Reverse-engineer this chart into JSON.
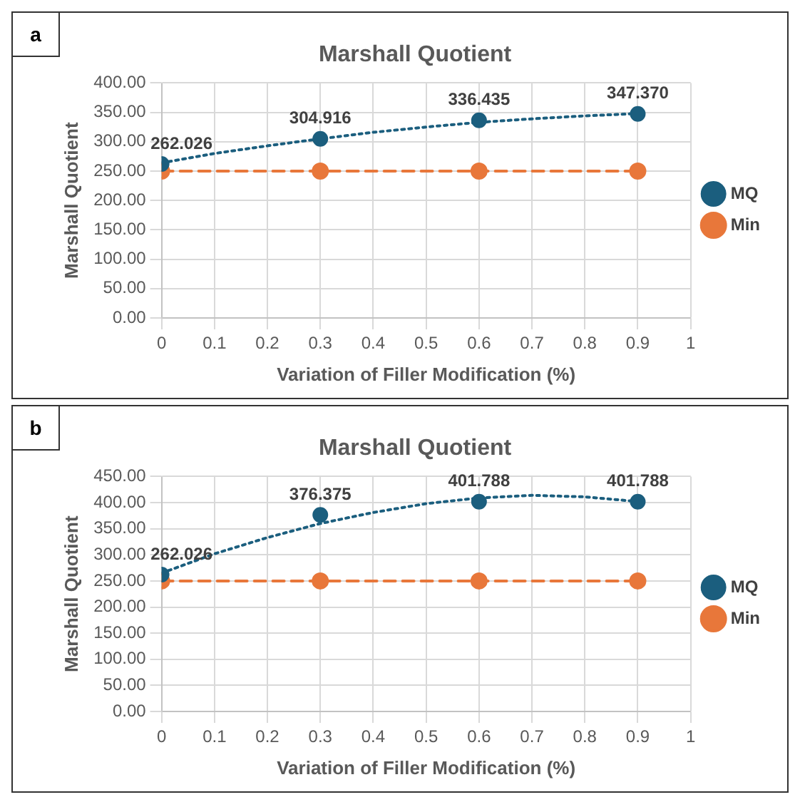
{
  "chart_data": [
    {
      "type": "scatter",
      "title": "Marshall Quotient",
      "xlabel": "Variation of Filler Modification (%)",
      "ylabel": "Marshall Quotient",
      "annotations": [
        "a"
      ],
      "xlim": [
        0,
        1
      ],
      "xticks": [
        0,
        0.1,
        0.2,
        0.3,
        0.4,
        0.5,
        0.6,
        0.7,
        0.8,
        0.9,
        1
      ],
      "ylim": [
        0,
        400
      ],
      "yticks": [
        {
          "value": 0,
          "label": "0.00"
        },
        {
          "value": 50,
          "label": "50.00"
        },
        {
          "value": 100,
          "label": "100.00"
        },
        {
          "value": 150,
          "label": "150.00"
        },
        {
          "value": 200,
          "label": "200.00"
        },
        {
          "value": 250,
          "label": "250.00"
        },
        {
          "value": 300,
          "label": "300.00"
        },
        {
          "value": 350,
          "label": "350.00"
        },
        {
          "value": 400,
          "label": "400.00"
        }
      ],
      "grid": true,
      "legend": "right",
      "series": [
        {
          "name": "MQ",
          "type": "scatter",
          "marker": "circle",
          "color": "#1b5e7e",
          "x": [
            0,
            0.3,
            0.6,
            0.9
          ],
          "values": [
            262.026,
            304.916,
            336.435,
            347.37
          ],
          "value_labels": [
            "262.026",
            "304.916",
            "336.435",
            "347.370"
          ]
        },
        {
          "name": "Min",
          "type": "line",
          "marker": "circle",
          "line_style": "dashed",
          "color": "#e8773a",
          "x": [
            0,
            0.3,
            0.6,
            0.9
          ],
          "values": [
            250,
            250,
            250,
            250
          ]
        },
        {
          "type": "line",
          "marker": "none",
          "line_style": "dotted",
          "color": "#1b5e7e",
          "x": [
            0,
            0.1,
            0.2,
            0.3,
            0.4,
            0.5,
            0.6,
            0.7,
            0.8,
            0.9
          ],
          "values": [
            264,
            280,
            293,
            305,
            316,
            325,
            333,
            339,
            344,
            348
          ]
        }
      ]
    },
    {
      "type": "scatter",
      "title": "Marshall Quotient",
      "xlabel": "Variation of Filler Modification (%)",
      "ylabel": "Marshall Quotient",
      "annotations": [
        "b"
      ],
      "xlim": [
        0,
        1
      ],
      "xticks": [
        0,
        0.1,
        0.2,
        0.3,
        0.4,
        0.5,
        0.6,
        0.7,
        0.8,
        0.9,
        1
      ],
      "ylim": [
        0,
        450
      ],
      "yticks": [
        {
          "value": 0,
          "label": "0.00"
        },
        {
          "value": 50,
          "label": "50.00"
        },
        {
          "value": 100,
          "label": "100.00"
        },
        {
          "value": 150,
          "label": "150.00"
        },
        {
          "value": 200,
          "label": "200.00"
        },
        {
          "value": 250,
          "label": "250.00"
        },
        {
          "value": 300,
          "label": "300.00"
        },
        {
          "value": 350,
          "label": "350.00"
        },
        {
          "value": 400,
          "label": "400.00"
        },
        {
          "value": 450,
          "label": "450.00"
        }
      ],
      "grid": true,
      "legend": "right",
      "series": [
        {
          "name": "MQ",
          "type": "scatter",
          "marker": "circle",
          "color": "#1b5e7e",
          "x": [
            0,
            0.3,
            0.6,
            0.9
          ],
          "values": [
            262.026,
            376.375,
            401.788,
            401.788
          ],
          "value_labels": [
            "262.026",
            "376.375",
            "401.788",
            "401.788"
          ]
        },
        {
          "name": "Min",
          "type": "line",
          "marker": "circle",
          "line_style": "dashed",
          "color": "#e8773a",
          "x": [
            0,
            0.3,
            0.6,
            0.9
          ],
          "values": [
            250,
            250,
            250,
            250
          ]
        },
        {
          "type": "line",
          "marker": "none",
          "line_style": "dotted",
          "color": "#1b5e7e",
          "x": [
            0,
            0.1,
            0.2,
            0.3,
            0.4,
            0.5,
            0.6,
            0.7,
            0.8,
            0.9
          ],
          "values": [
            265,
            302,
            333,
            360,
            381,
            398,
            409,
            414,
            411,
            402
          ]
        }
      ]
    }
  ]
}
